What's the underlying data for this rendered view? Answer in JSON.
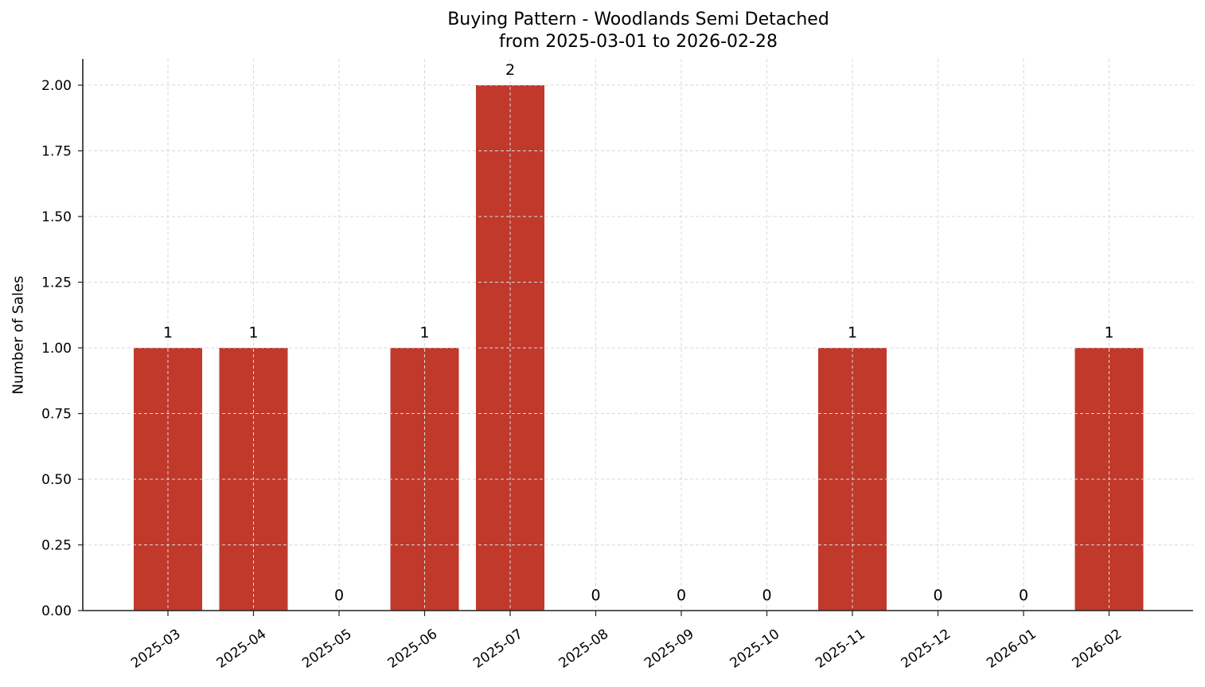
{
  "chart_data": {
    "type": "bar",
    "title": "Buying Pattern - Woodlands Semi Detached",
    "subtitle": "from 2025-03-01 to 2026-02-28",
    "xlabel": "",
    "ylabel": "Number of Sales",
    "categories": [
      "2025-03",
      "2025-04",
      "2025-05",
      "2025-06",
      "2025-07",
      "2025-08",
      "2025-09",
      "2025-10",
      "2025-11",
      "2025-12",
      "2026-01",
      "2026-02"
    ],
    "values": [
      1,
      1,
      0,
      1,
      2,
      0,
      0,
      0,
      1,
      0,
      0,
      1
    ],
    "data_labels": [
      "1",
      "1",
      "0",
      "1",
      "2",
      "0",
      "0",
      "0",
      "1",
      "0",
      "0",
      "1"
    ],
    "ylim": [
      0,
      2.1
    ],
    "yticks": [
      0.0,
      0.25,
      0.5,
      0.75,
      1.0,
      1.25,
      1.5,
      1.75,
      2.0
    ],
    "ytick_labels": [
      "0.00",
      "0.25",
      "0.50",
      "0.75",
      "1.00",
      "1.25",
      "1.50",
      "1.75",
      "2.00"
    ],
    "grid": true,
    "legend": null,
    "bar_color": "#c0392b",
    "grid_color": "#d9d9d9",
    "axis_color": "#000000"
  }
}
